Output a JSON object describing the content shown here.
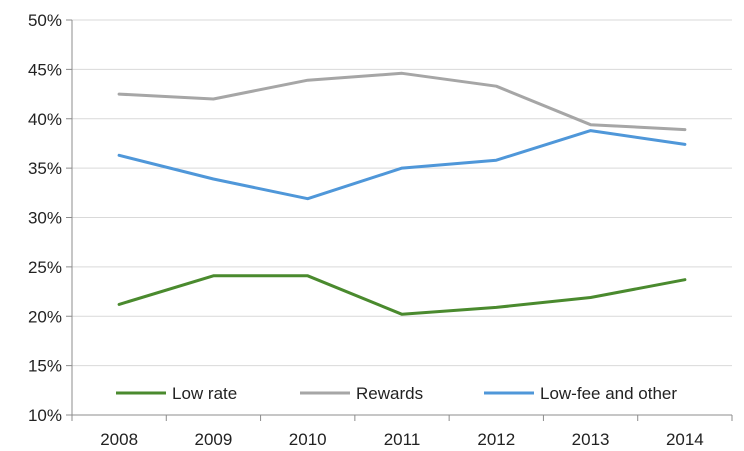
{
  "chart_data": {
    "type": "line",
    "categories": [
      "2008",
      "2009",
      "2010",
      "2011",
      "2012",
      "2013",
      "2014"
    ],
    "ylim": [
      10,
      50
    ],
    "yticks": [
      10,
      15,
      20,
      25,
      30,
      35,
      40,
      45,
      50
    ],
    "ytick_labels": [
      "10%",
      "15%",
      "20%",
      "25%",
      "30%",
      "35%",
      "40%",
      "45%",
      "50%"
    ],
    "grid": "horizontal",
    "legend_position": "bottom-inside",
    "series": [
      {
        "name": "Low rate",
        "color": "#4a8a2e",
        "values": [
          21.2,
          24.1,
          24.1,
          20.2,
          20.9,
          21.9,
          23.7
        ]
      },
      {
        "name": "Rewards",
        "color": "#a6a6a6",
        "values": [
          42.5,
          42.0,
          43.9,
          44.6,
          43.3,
          39.4,
          38.9
        ]
      },
      {
        "name": "Low-fee and other",
        "color": "#4f97d9",
        "values": [
          36.3,
          33.9,
          31.9,
          35.0,
          35.8,
          38.8,
          37.4
        ]
      }
    ]
  }
}
